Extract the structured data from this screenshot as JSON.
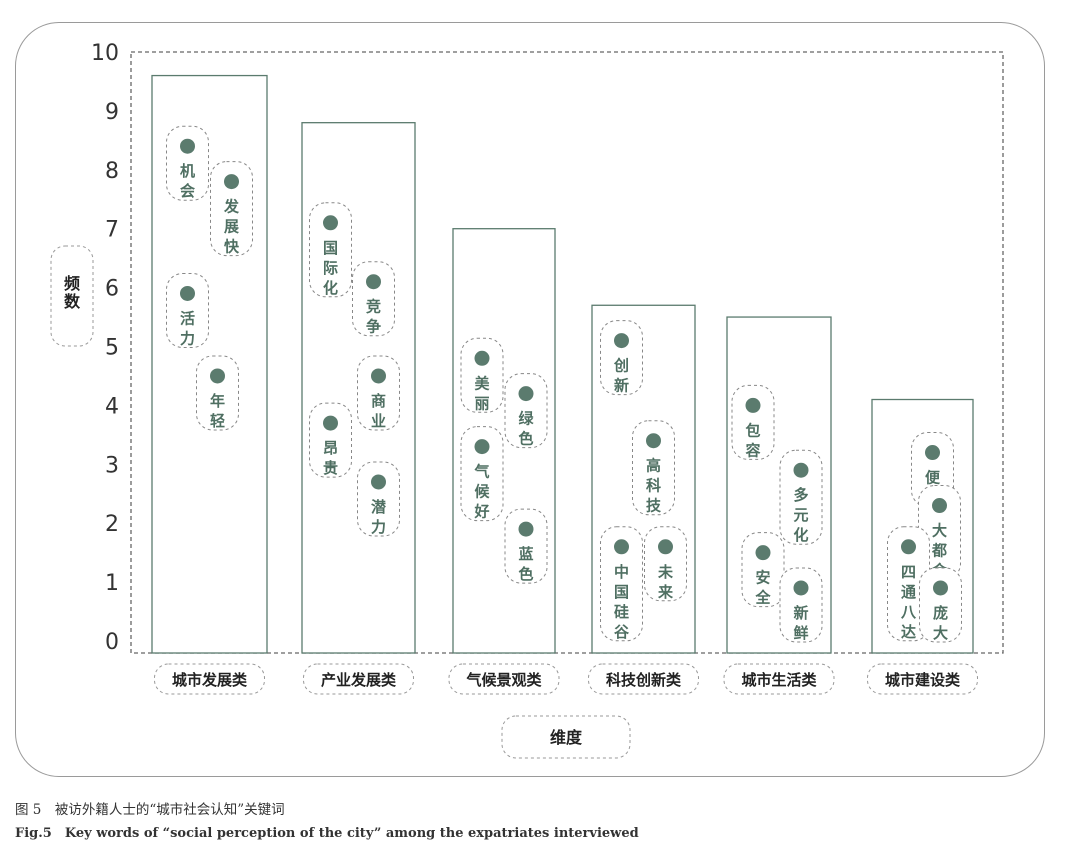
{
  "chart_data": {
    "type": "bar",
    "ylabel": "频数",
    "xlabel": "维度",
    "ylim": [
      0,
      10
    ],
    "yticks": [
      0,
      1,
      2,
      3,
      4,
      5,
      6,
      7,
      8,
      9,
      10
    ],
    "categories": [
      "城市发展类",
      "产业发展类",
      "气候景观类",
      "科技创新类",
      "城市生活类",
      "城市建设类"
    ],
    "values": [
      9.6,
      8.8,
      7.0,
      5.7,
      5.5,
      4.1
    ],
    "keywords": [
      [
        {
          "text": "机会",
          "y": 8.4
        },
        {
          "text": "发展快",
          "y": 7.8
        },
        {
          "text": "活力",
          "y": 5.9
        },
        {
          "text": "年轻",
          "y": 4.5
        }
      ],
      [
        {
          "text": "国际化",
          "y": 7.1
        },
        {
          "text": "竞争",
          "y": 6.1
        },
        {
          "text": "商业",
          "y": 4.5
        },
        {
          "text": "昂贵",
          "y": 3.7
        },
        {
          "text": "潜力",
          "y": 2.7
        }
      ],
      [
        {
          "text": "美丽",
          "y": 4.8
        },
        {
          "text": "绿色",
          "y": 4.2
        },
        {
          "text": "气候好",
          "y": 3.3
        },
        {
          "text": "蓝色",
          "y": 1.9
        }
      ],
      [
        {
          "text": "创新",
          "y": 5.1
        },
        {
          "text": "高科技",
          "y": 3.4
        },
        {
          "text": "中国硅谷",
          "y": 1.6
        },
        {
          "text": "未来",
          "y": 1.6
        }
      ],
      [
        {
          "text": "包容",
          "y": 4.0
        },
        {
          "text": "多元化",
          "y": 2.9
        },
        {
          "text": "安全",
          "y": 1.5
        },
        {
          "text": "新鲜",
          "y": 0.9
        }
      ],
      [
        {
          "text": "便利",
          "y": 3.2
        },
        {
          "text": "大都会",
          "y": 2.3
        },
        {
          "text": "四通八达",
          "y": 1.6
        },
        {
          "text": "庞大",
          "y": 0.9
        }
      ]
    ],
    "colors": {
      "bar_border": "#5b7b6e",
      "dot": "#5b7b6e",
      "text": "#4f6f62"
    }
  },
  "caption": {
    "cn": "图 5　被访外籍人士的“城市社会认知”关键词",
    "en": "Fig.5　Key words of “social perception of the city” among the expatriates interviewed"
  }
}
